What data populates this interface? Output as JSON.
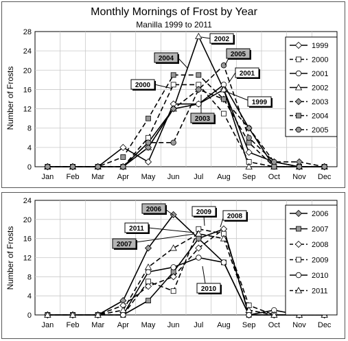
{
  "chart_data": [
    {
      "type": "line",
      "title": "Monthly Mornings of Frost by Year",
      "subtitle": "Manilla 1999 to 2011",
      "xlabel": "",
      "ylabel": "Number of Frosts",
      "ylim": [
        0,
        28
      ],
      "yticks": [
        0,
        4,
        8,
        12,
        16,
        20,
        24,
        28
      ],
      "grid": true,
      "legend_position": "right",
      "categories": [
        "Jan",
        "Feb",
        "Mar",
        "Apr",
        "May",
        "Jun",
        "Jul",
        "Aug",
        "Sep",
        "Oct",
        "Nov",
        "Dec"
      ],
      "series": [
        {
          "name": "1999",
          "marker": "diamond-open",
          "dash": "solid",
          "values": [
            0,
            0,
            0,
            4,
            1,
            13,
            13,
            16,
            3,
            1,
            0,
            0
          ]
        },
        {
          "name": "2000",
          "marker": "square-open",
          "dash": "dash",
          "values": [
            0,
            0,
            0,
            0,
            6,
            17,
            17,
            11,
            1,
            0,
            0,
            0
          ]
        },
        {
          "name": "2001",
          "marker": "circle-open",
          "dash": "solid",
          "values": [
            0,
            0,
            0,
            0,
            5,
            12,
            13,
            17,
            8,
            0,
            0,
            0
          ]
        },
        {
          "name": "2002",
          "marker": "triangle-open",
          "dash": "solid",
          "values": [
            0,
            0,
            0,
            0,
            4,
            12,
            27,
            16,
            0,
            0,
            0,
            0
          ]
        },
        {
          "name": "2003",
          "marker": "diamond-grey",
          "dash": "dash",
          "values": [
            0,
            0,
            0,
            0,
            4,
            12,
            16,
            14,
            8,
            1,
            1,
            0
          ]
        },
        {
          "name": "2004",
          "marker": "square-grey",
          "dash": "dash",
          "values": [
            0,
            0,
            0,
            2,
            10,
            19,
            19,
            14,
            5,
            0,
            0,
            0
          ]
        },
        {
          "name": "2005",
          "marker": "circle-grey",
          "dash": "dash",
          "values": [
            0,
            0,
            0,
            0,
            5,
            5,
            16,
            21,
            6,
            1,
            0,
            0
          ]
        }
      ],
      "annotations": [
        {
          "text": "2002",
          "fill": "white"
        },
        {
          "text": "2005",
          "fill": "grey"
        },
        {
          "text": "2004",
          "fill": "grey"
        },
        {
          "text": "2001",
          "fill": "white"
        },
        {
          "text": "2000",
          "fill": "white"
        },
        {
          "text": "1999",
          "fill": "white"
        },
        {
          "text": "2003",
          "fill": "grey"
        }
      ]
    },
    {
      "type": "line",
      "xlabel": "",
      "ylabel": "Number of Frosts",
      "ylim": [
        0,
        24
      ],
      "yticks": [
        0,
        4,
        8,
        12,
        16,
        20,
        24
      ],
      "grid": true,
      "legend_position": "right",
      "categories": [
        "Jan",
        "Feb",
        "Mar",
        "Apr",
        "May",
        "Jun",
        "Jul",
        "Aug",
        "Sep",
        "Oct",
        "Nov",
        "Dec"
      ],
      "series": [
        {
          "name": "2006",
          "marker": "diamond-grey",
          "dash": "solid",
          "values": [
            0,
            0,
            0,
            3,
            14,
            21,
            16,
            18,
            0,
            0,
            0,
            0
          ]
        },
        {
          "name": "2007",
          "marker": "square-grey",
          "dash": "solid",
          "values": [
            0,
            0,
            0,
            0,
            3,
            9,
            16,
            11,
            0,
            0,
            0,
            0
          ]
        },
        {
          "name": "2008",
          "marker": "diamond-open",
          "dash": "dash",
          "values": [
            0,
            0,
            0,
            2,
            6,
            8,
            14,
            18,
            0,
            0,
            0,
            0
          ]
        },
        {
          "name": "2009",
          "marker": "square-open",
          "dash": "dash",
          "values": [
            0,
            0,
            0,
            0,
            7,
            5,
            18,
            17,
            2,
            0,
            0,
            0
          ]
        },
        {
          "name": "2010",
          "marker": "circle-open",
          "dash": "solid",
          "values": [
            0,
            0,
            0,
            0,
            9,
            10,
            12,
            11,
            0,
            1,
            0,
            0
          ]
        },
        {
          "name": "2011",
          "marker": "triangle-open",
          "dash": "dash",
          "values": [
            0,
            0,
            0,
            1,
            10,
            14,
            17,
            16,
            1,
            0,
            0,
            0
          ]
        }
      ],
      "annotations": [
        {
          "text": "2006",
          "fill": "grey"
        },
        {
          "text": "2009",
          "fill": "white"
        },
        {
          "text": "2008",
          "fill": "white"
        },
        {
          "text": "2011",
          "fill": "white"
        },
        {
          "text": "2007",
          "fill": "grey"
        },
        {
          "text": "2010",
          "fill": "white"
        }
      ]
    }
  ]
}
